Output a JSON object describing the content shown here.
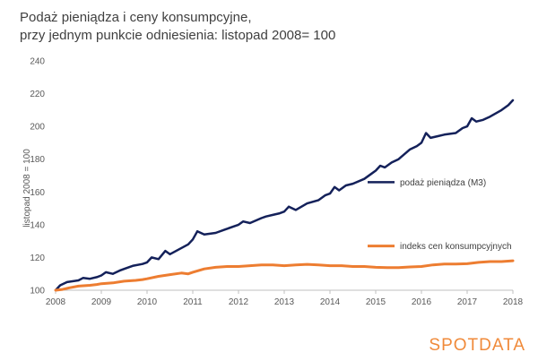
{
  "title_line1": "Podaż pieniądza i ceny konsumpcyjne,",
  "title_line2": "przy jednym punkcie odniesienia: listopad 2008= 100",
  "logo": "SPOTDATA",
  "colors": {
    "m3": "#14215a",
    "cpi": "#ed7d31",
    "axis": "#bfbfbf",
    "text": "#595959"
  },
  "chart_data": {
    "type": "line",
    "title": "Podaż pieniądza i ceny konsumpcyjne, przy jednym punkcie odniesienia: listopad 2008= 100",
    "xlabel": "",
    "ylabel": "listopad 2008 = 100",
    "xlim": [
      2008,
      2018
    ],
    "ylim": [
      100,
      240
    ],
    "xticks": [
      "2008",
      "2009",
      "2010",
      "2011",
      "2012",
      "2013",
      "2014",
      "2015",
      "2016",
      "2017",
      "2018"
    ],
    "yticks": [
      "100",
      "120",
      "140",
      "160",
      "180",
      "200",
      "220",
      "240"
    ],
    "grid": false,
    "legend": "inline",
    "series": [
      {
        "name": "podaż pieniądza (M3)",
        "color": "#14215a",
        "points": [
          [
            2008.0,
            100
          ],
          [
            2008.1,
            103
          ],
          [
            2008.25,
            105
          ],
          [
            2008.5,
            106
          ],
          [
            2008.6,
            107.5
          ],
          [
            2008.75,
            107
          ],
          [
            2008.9,
            108
          ],
          [
            2009.0,
            109
          ],
          [
            2009.1,
            111
          ],
          [
            2009.25,
            110
          ],
          [
            2009.4,
            112
          ],
          [
            2009.5,
            113
          ],
          [
            2009.7,
            115
          ],
          [
            2009.9,
            116
          ],
          [
            2010.0,
            117
          ],
          [
            2010.1,
            120
          ],
          [
            2010.25,
            119
          ],
          [
            2010.4,
            124
          ],
          [
            2010.5,
            122
          ],
          [
            2010.7,
            125
          ],
          [
            2010.9,
            128
          ],
          [
            2011.0,
            131
          ],
          [
            2011.1,
            136
          ],
          [
            2011.25,
            134
          ],
          [
            2011.5,
            135
          ],
          [
            2011.7,
            137
          ],
          [
            2011.9,
            139
          ],
          [
            2012.0,
            140
          ],
          [
            2012.1,
            142
          ],
          [
            2012.25,
            141
          ],
          [
            2012.5,
            144
          ],
          [
            2012.6,
            145
          ],
          [
            2012.75,
            146
          ],
          [
            2012.9,
            147
          ],
          [
            2013.0,
            148
          ],
          [
            2013.1,
            151
          ],
          [
            2013.25,
            149
          ],
          [
            2013.5,
            153
          ],
          [
            2013.75,
            155
          ],
          [
            2013.9,
            158
          ],
          [
            2014.0,
            159
          ],
          [
            2014.1,
            163
          ],
          [
            2014.2,
            161
          ],
          [
            2014.35,
            164
          ],
          [
            2014.5,
            165
          ],
          [
            2014.75,
            168
          ],
          [
            2014.9,
            171
          ],
          [
            2015.0,
            173
          ],
          [
            2015.1,
            176
          ],
          [
            2015.2,
            175
          ],
          [
            2015.35,
            178
          ],
          [
            2015.5,
            180
          ],
          [
            2015.75,
            186
          ],
          [
            2015.9,
            188
          ],
          [
            2016.0,
            190
          ],
          [
            2016.1,
            196
          ],
          [
            2016.2,
            193
          ],
          [
            2016.35,
            194
          ],
          [
            2016.5,
            195
          ],
          [
            2016.75,
            196
          ],
          [
            2016.9,
            199
          ],
          [
            2017.0,
            200
          ],
          [
            2017.1,
            205
          ],
          [
            2017.2,
            203
          ],
          [
            2017.35,
            204
          ],
          [
            2017.5,
            206
          ],
          [
            2017.75,
            210
          ],
          [
            2017.9,
            213
          ],
          [
            2018.0,
            216
          ]
        ]
      },
      {
        "name": "indeks cen konsumpcyjnych",
        "color": "#ed7d31",
        "points": [
          [
            2008.0,
            100
          ],
          [
            2008.15,
            100.5
          ],
          [
            2008.3,
            101.5
          ],
          [
            2008.5,
            102.5
          ],
          [
            2008.75,
            103
          ],
          [
            2008.9,
            103.5
          ],
          [
            2009.0,
            104
          ],
          [
            2009.25,
            104.5
          ],
          [
            2009.5,
            105.5
          ],
          [
            2009.75,
            106
          ],
          [
            2009.9,
            106.5
          ],
          [
            2010.0,
            107
          ],
          [
            2010.25,
            108.5
          ],
          [
            2010.5,
            109.5
          ],
          [
            2010.75,
            110.5
          ],
          [
            2010.9,
            110
          ],
          [
            2011.0,
            111
          ],
          [
            2011.25,
            113
          ],
          [
            2011.5,
            114
          ],
          [
            2011.75,
            114.5
          ],
          [
            2012.0,
            114.5
          ],
          [
            2012.25,
            115
          ],
          [
            2012.5,
            115.5
          ],
          [
            2012.75,
            115.5
          ],
          [
            2013.0,
            115
          ],
          [
            2013.25,
            115.5
          ],
          [
            2013.5,
            115.8
          ],
          [
            2013.75,
            115.5
          ],
          [
            2014.0,
            115
          ],
          [
            2014.25,
            115
          ],
          [
            2014.5,
            114.5
          ],
          [
            2014.75,
            114.5
          ],
          [
            2015.0,
            114
          ],
          [
            2015.25,
            113.8
          ],
          [
            2015.5,
            113.8
          ],
          [
            2015.75,
            114.2
          ],
          [
            2016.0,
            114.5
          ],
          [
            2016.25,
            115.5
          ],
          [
            2016.5,
            116
          ],
          [
            2016.75,
            116
          ],
          [
            2017.0,
            116.2
          ],
          [
            2017.25,
            117
          ],
          [
            2017.5,
            117.5
          ],
          [
            2017.75,
            117.5
          ],
          [
            2018.0,
            118
          ]
        ]
      }
    ]
  }
}
